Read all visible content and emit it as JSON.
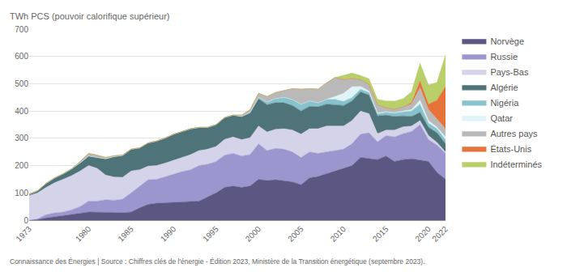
{
  "chart_data": {
    "type": "area",
    "stacked": true,
    "y_label": "TWh PCS (pouvoir calorifique supérieur)",
    "source": "Connaissance des Énergies | Source : Chiffres clés de l'énergie - Édition 2023, Ministère de la Transition énergétique (septembre 2023).",
    "x": [
      1973,
      1974,
      1975,
      1976,
      1977,
      1978,
      1979,
      1980,
      1981,
      1982,
      1983,
      1984,
      1985,
      1986,
      1987,
      1988,
      1989,
      1990,
      1991,
      1992,
      1993,
      1994,
      1995,
      1996,
      1997,
      1998,
      1999,
      2000,
      2001,
      2002,
      2003,
      2004,
      2005,
      2006,
      2007,
      2008,
      2009,
      2010,
      2011,
      2012,
      2013,
      2014,
      2015,
      2016,
      2017,
      2018,
      2019,
      2020,
      2021,
      2022
    ],
    "xlim": [
      1973,
      2022
    ],
    "xticks": [
      1973,
      1980,
      1985,
      1990,
      1995,
      2000,
      2005,
      2010,
      2015,
      2020,
      2022
    ],
    "ylim": [
      0,
      700
    ],
    "yticks": [
      0,
      100,
      200,
      300,
      400,
      500,
      600,
      700
    ],
    "grid": true,
    "legend": "right",
    "series": [
      {
        "name": "Norvège",
        "color": "#5b5682",
        "values": [
          0,
          2,
          8,
          12,
          15,
          20,
          25,
          30,
          30,
          30,
          28,
          27,
          30,
          45,
          58,
          62,
          64,
          65,
          68,
          70,
          70,
          85,
          100,
          120,
          125,
          120,
          125,
          150,
          145,
          148,
          145,
          140,
          130,
          155,
          160,
          170,
          180,
          190,
          200,
          230,
          225,
          222,
          235,
          215,
          222,
          225,
          220,
          215,
          175,
          150
        ]
      },
      {
        "name": "Russie",
        "color": "#9c96cf",
        "values": [
          0,
          3,
          12,
          15,
          15,
          18,
          25,
          40,
          40,
          45,
          45,
          50,
          70,
          80,
          90,
          88,
          95,
          105,
          110,
          115,
          130,
          120,
          115,
          118,
          120,
          115,
          115,
          130,
          110,
          115,
          115,
          110,
          100,
          95,
          85,
          80,
          75,
          70,
          80,
          85,
          95,
          65,
          75,
          90,
          95,
          100,
          130,
          80,
          100,
          95
        ]
      },
      {
        "name": "Pays-Bas",
        "color": "#d5d3ea",
        "values": [
          90,
          95,
          100,
          110,
          120,
          125,
          130,
          130,
          120,
          90,
          85,
          80,
          80,
          60,
          50,
          50,
          50,
          50,
          52,
          55,
          55,
          55,
          55,
          58,
          60,
          60,
          62,
          65,
          68,
          70,
          75,
          80,
          85,
          85,
          90,
          95,
          90,
          85,
          85,
          85,
          70,
          30,
          20,
          25,
          25,
          20,
          15,
          15,
          10,
          5
        ]
      },
      {
        "name": "Algérie",
        "color": "#4e7479",
        "values": [
          5,
          8,
          15,
          18,
          20,
          25,
          30,
          35,
          40,
          60,
          75,
          80,
          80,
          80,
          85,
          90,
          92,
          95,
          95,
          95,
          85,
          80,
          80,
          80,
          80,
          85,
          90,
          100,
          100,
          98,
          95,
          90,
          85,
          82,
          80,
          80,
          78,
          75,
          72,
          70,
          68,
          65,
          55,
          50,
          40,
          35,
          30,
          30,
          35,
          30
        ]
      },
      {
        "name": "Nigéria",
        "color": "#87c2cd",
        "values": [
          0,
          0,
          0,
          0,
          0,
          0,
          0,
          0,
          0,
          0,
          0,
          0,
          0,
          0,
          0,
          0,
          0,
          0,
          0,
          0,
          0,
          0,
          0,
          0,
          0,
          0,
          3,
          5,
          10,
          15,
          20,
          22,
          25,
          20,
          15,
          18,
          20,
          15,
          12,
          10,
          10,
          8,
          10,
          12,
          15,
          20,
          30,
          15,
          15,
          15
        ]
      },
      {
        "name": "Qatar",
        "color": "#e0f3f6",
        "values": [
          0,
          0,
          0,
          0,
          0,
          0,
          0,
          0,
          0,
          0,
          0,
          0,
          0,
          0,
          0,
          0,
          0,
          0,
          0,
          0,
          0,
          0,
          0,
          0,
          0,
          0,
          0,
          0,
          0,
          0,
          0,
          0,
          0,
          0,
          0,
          0,
          10,
          30,
          40,
          10,
          5,
          3,
          2,
          2,
          3,
          5,
          15,
          10,
          5,
          10
        ]
      },
      {
        "name": "Autres pays",
        "color": "#b9b9b9",
        "values": [
          0,
          0,
          0,
          0,
          0,
          0,
          5,
          10,
          8,
          5,
          3,
          2,
          0,
          0,
          0,
          0,
          0,
          0,
          0,
          0,
          0,
          0,
          0,
          0,
          0,
          5,
          10,
          15,
          20,
          22,
          25,
          40,
          55,
          45,
          50,
          60,
          70,
          50,
          30,
          25,
          25,
          30,
          15,
          12,
          15,
          20,
          45,
          40,
          30,
          30
        ]
      },
      {
        "name": "États-Unis",
        "color": "#e8733a",
        "values": [
          0,
          0,
          0,
          0,
          0,
          0,
          0,
          0,
          0,
          0,
          0,
          0,
          0,
          0,
          0,
          0,
          0,
          0,
          0,
          0,
          0,
          0,
          0,
          0,
          0,
          0,
          0,
          0,
          0,
          0,
          0,
          0,
          0,
          0,
          0,
          0,
          0,
          0,
          0,
          0,
          0,
          0,
          0,
          0,
          0,
          5,
          25,
          20,
          70,
          155
        ]
      },
      {
        "name": "Indéterminés",
        "color": "#b9cf6a",
        "values": [
          0,
          0,
          0,
          0,
          0,
          0,
          0,
          0,
          0,
          0,
          0,
          0,
          0,
          0,
          0,
          0,
          0,
          0,
          0,
          0,
          0,
          0,
          0,
          0,
          0,
          0,
          0,
          0,
          0,
          0,
          0,
          0,
          0,
          0,
          0,
          0,
          0,
          15,
          20,
          15,
          20,
          20,
          25,
          30,
          30,
          40,
          65,
          70,
          65,
          115
        ]
      }
    ]
  }
}
